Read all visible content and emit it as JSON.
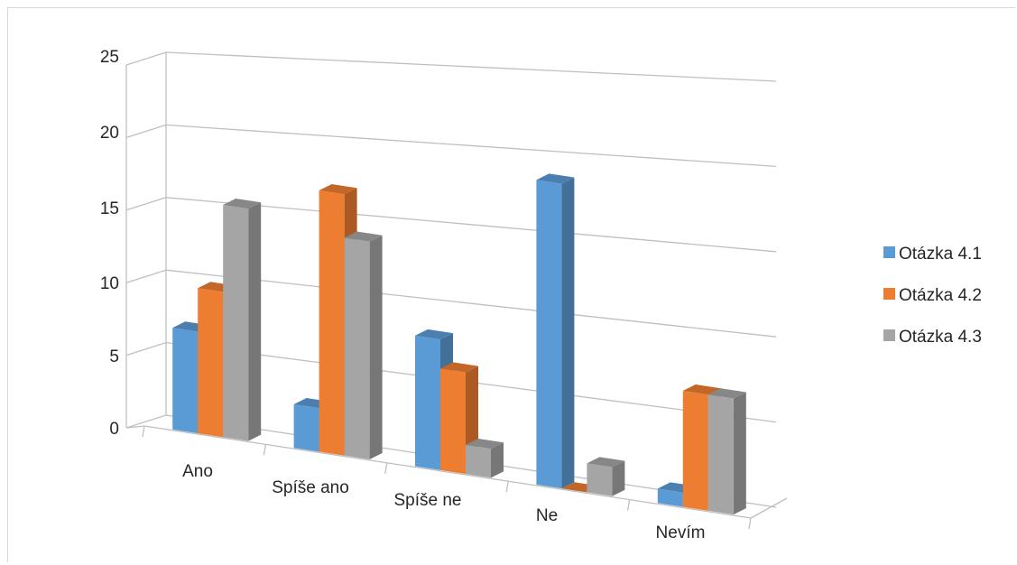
{
  "chart_data": {
    "type": "bar",
    "style": "3d-clustered-column",
    "categories": [
      "Ano",
      "Spíše ano",
      "Spíše ne",
      "Ne",
      "Nevím"
    ],
    "series": [
      {
        "name": "Otázka 4.1",
        "color": "#5b9bd5",
        "values": [
          7,
          3,
          9,
          21,
          1
        ]
      },
      {
        "name": "Otázka 4.2",
        "color": "#ed7d31",
        "values": [
          10,
          18,
          7,
          0,
          8
        ]
      },
      {
        "name": "Otázka 4.3",
        "color": "#a5a5a5",
        "values": [
          16,
          15,
          2,
          2,
          8
        ]
      }
    ],
    "yticks": [
      "0",
      "5",
      "10",
      "15",
      "20",
      "25"
    ],
    "ylim": [
      0,
      25
    ],
    "grid": true,
    "legend_position": "right"
  }
}
